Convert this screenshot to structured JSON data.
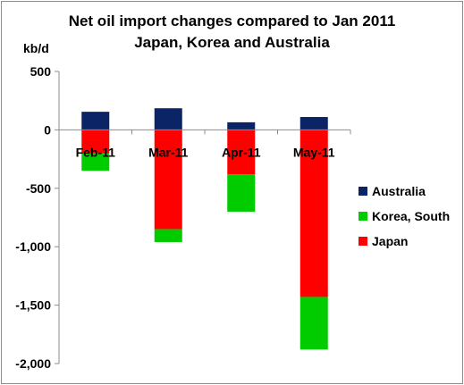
{
  "chart_data": {
    "type": "bar",
    "stacked": true,
    "title": "Net oil import changes compared to Jan 2011",
    "subtitle": "Japan, Korea and Australia",
    "ylabel": "kb/d",
    "xlabel": "",
    "ylim": [
      -2000,
      500
    ],
    "yticks": [
      500,
      0,
      -500,
      -1000,
      -1500,
      -2000
    ],
    "ytick_labels": [
      "500",
      "0",
      "-500",
      "-1,000",
      "-1,500",
      "-2,000"
    ],
    "categories": [
      "Feb-11",
      "Mar-11",
      "Apr-11",
      "May-11"
    ],
    "series": [
      {
        "name": "Japan",
        "color": "#ff0000",
        "values": [
          -200,
          -850,
          -380,
          -1430
        ]
      },
      {
        "name": "Korea, South",
        "color": "#00cc00",
        "values": [
          -150,
          -110,
          -320,
          -450
        ]
      },
      {
        "name": "Australia",
        "color": "#0b2465",
        "values": [
          155,
          185,
          65,
          110
        ]
      }
    ],
    "legend_order": [
      "Australia",
      "Korea, South",
      "Japan"
    ],
    "legend_position": "right",
    "grid": false
  }
}
